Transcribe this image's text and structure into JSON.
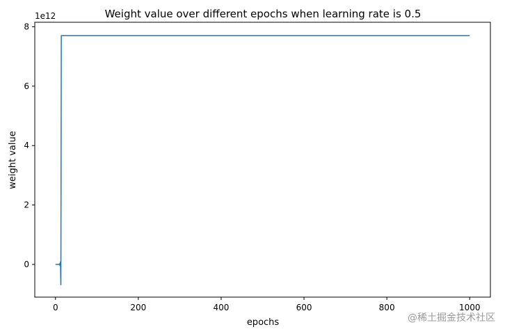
{
  "chart_data": {
    "type": "line",
    "title": "Weight value over different epochs when learning rate is 0.5",
    "xlabel": "epochs",
    "ylabel": "weight value",
    "y_offset_label": "1e12",
    "xlim": [
      -50,
      1050
    ],
    "ylim": [
      -1.1,
      8.15
    ],
    "x_ticks": [
      0,
      200,
      400,
      600,
      800,
      1000
    ],
    "y_ticks": [
      0,
      2,
      4,
      6,
      8
    ],
    "grid": false,
    "line_color": "#1f77b4",
    "series": [
      {
        "x": [
          0,
          5,
          8,
          10,
          11,
          12,
          13,
          14,
          1000
        ],
        "y": [
          0,
          0,
          0,
          0.02,
          -0.05,
          0.1,
          -0.7,
          7.7,
          7.7
        ]
      }
    ]
  },
  "watermark": "@稀土掘金技术社区"
}
